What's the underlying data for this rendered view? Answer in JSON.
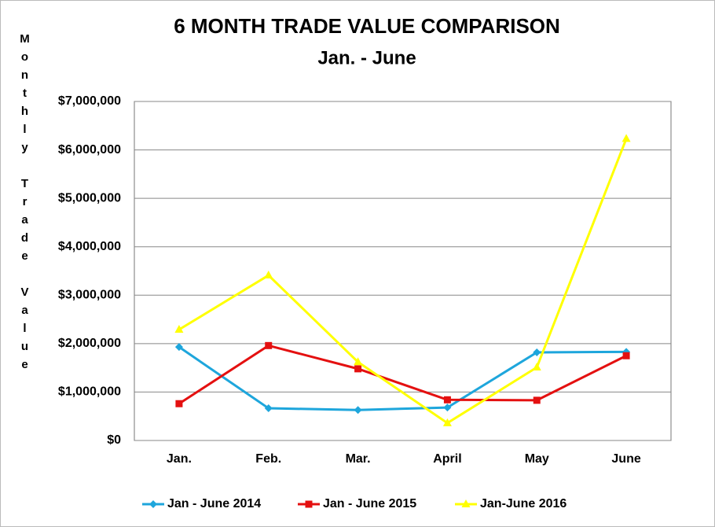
{
  "chart_data": {
    "type": "line",
    "title": "6 MONTH TRADE VALUE COMPARISON",
    "subtitle": "Jan.  - June",
    "ylabel": "Monthly Trade Value",
    "categories": [
      "Jan.",
      "Feb.",
      "Mar.",
      "April",
      "May",
      "June"
    ],
    "series": [
      {
        "name": "Jan - June 2014",
        "color": "#1ea6dc",
        "marker": "diamond",
        "values": [
          1930000,
          665000,
          630000,
          680000,
          1820000,
          1830000
        ]
      },
      {
        "name": "Jan - June 2015",
        "color": "#e41010",
        "marker": "square",
        "values": [
          760000,
          1960000,
          1480000,
          840000,
          830000,
          1750000
        ]
      },
      {
        "name": "Jan-June 2016",
        "color": "#ffff00",
        "marker": "triangle",
        "values": [
          2290000,
          3410000,
          1620000,
          360000,
          1510000,
          6230000
        ]
      }
    ],
    "ylim": [
      0,
      7000000
    ],
    "yticks": [
      {
        "value": 0,
        "label": "$0"
      },
      {
        "value": 1000000,
        "label": "$1,000,000"
      },
      {
        "value": 2000000,
        "label": "$2,000,000"
      },
      {
        "value": 3000000,
        "label": "$3,000,000"
      },
      {
        "value": 4000000,
        "label": "$4,000,000"
      },
      {
        "value": 5000000,
        "label": "$5,000,000"
      },
      {
        "value": 6000000,
        "label": "$6,000,000"
      },
      {
        "value": 7000000,
        "label": "$7,000,000"
      }
    ],
    "grid": true,
    "legend": "bottom"
  }
}
